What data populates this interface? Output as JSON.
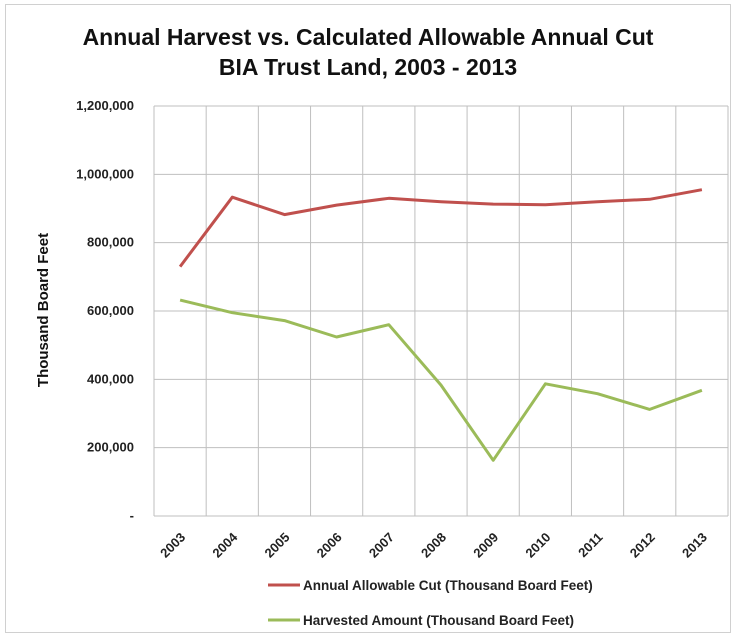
{
  "chart_data": {
    "type": "line",
    "title": "Annual Harvest vs. Calculated Allowable Annual Cut",
    "subtitle": "BIA Trust Land, 2003 - 2013",
    "ylabel": "Thousand Board Feet",
    "xlabel": "",
    "categories": [
      "2003",
      "2004",
      "2005",
      "2006",
      "2007",
      "2008",
      "2009",
      "2010",
      "2011",
      "2012",
      "2013"
    ],
    "ylim": [
      0,
      1200000
    ],
    "yticks": [
      0,
      200000,
      400000,
      600000,
      800000,
      1000000,
      1200000
    ],
    "ytick_labels": [
      "-",
      "200,000",
      "400,000",
      "600,000",
      "800,000",
      "1,000,000",
      "1,200,000"
    ],
    "grid": true,
    "legend_position": "bottom",
    "series": [
      {
        "name": "Annual Allowable Cut (Thousand Board Feet)",
        "color": "#c0504d",
        "values": [
          730000,
          933000,
          882000,
          910000,
          930000,
          920000,
          913000,
          911000,
          920000,
          927000,
          955000
        ]
      },
      {
        "name": "Harvested Amount (Thousand Board Feet)",
        "color": "#9bbb59",
        "values": [
          632000,
          595000,
          572000,
          524000,
          560000,
          383000,
          163000,
          387000,
          358000,
          312000,
          368000
        ]
      }
    ]
  }
}
